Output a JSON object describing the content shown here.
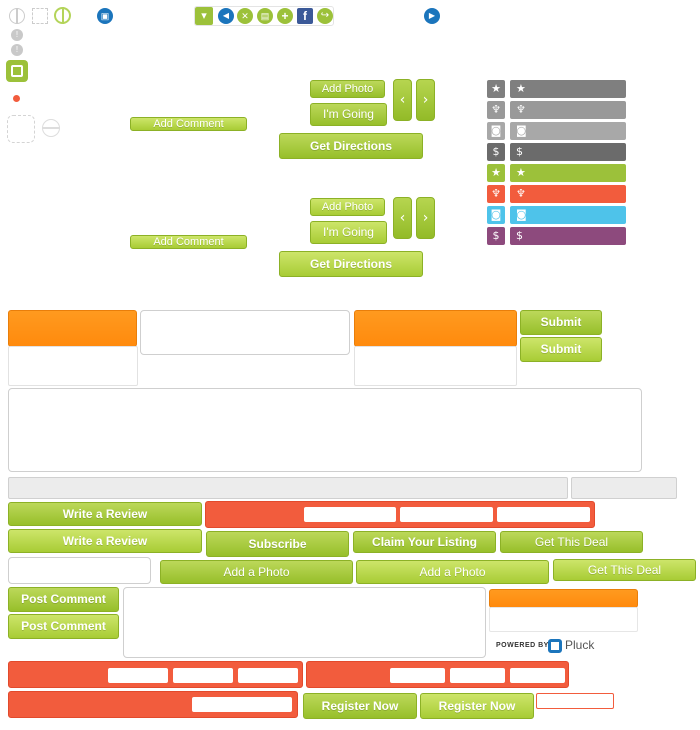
{
  "top_buttons": {
    "add_comment_1": "Add Comment",
    "add_comment_2": "Add Comment",
    "add_photo_1": "Add Photo",
    "add_photo_2": "Add Photo",
    "im_going_1": "I'm Going",
    "im_going_2": "I'm Going",
    "get_directions_1": "Get Directions",
    "get_directions_2": "Get Directions",
    "prev_arrow": "‹",
    "next_arrow": "›"
  },
  "toolbar": {
    "dropdown_glyph": "▾",
    "back_glyph": "◀",
    "close_glyph": "✕",
    "print_glyph": "▤",
    "add_glyph": "+",
    "facebook_glyph": "f",
    "share_glyph": "↪",
    "left_icon_glyph": "▣",
    "right_icon_glyph": "▶"
  },
  "side_icons": {
    "info_1": "!",
    "info_2": "!"
  },
  "category_rows": [
    {
      "icon": "★",
      "color": "#7f7f7f",
      "label": "★"
    },
    {
      "icon": "♆",
      "color": "#999999",
      "label": "♆"
    },
    {
      "icon": "◙",
      "color": "#a8a8a8",
      "label": "◙"
    },
    {
      "icon": "$",
      "color": "#6b6b6b",
      "label": "$"
    },
    {
      "icon": "★",
      "color": "#9cc13a",
      "label": "★"
    },
    {
      "icon": "♆",
      "color": "#f25c3d",
      "label": "♆"
    },
    {
      "icon": "◙",
      "color": "#4ec3ea",
      "label": "◙"
    },
    {
      "icon": "$",
      "color": "#8d4a7d",
      "label": "$"
    }
  ],
  "form": {
    "submit_1": "Submit",
    "submit_2": "Submit",
    "write_review_1": "Write a Review",
    "write_review_2": "Write a Review",
    "subscribe": "Subscribe",
    "claim_listing": "Claim Your Listing",
    "get_this_deal_1": "Get This Deal",
    "get_this_deal_2": "Get This Deal",
    "add_a_photo_1": "Add a Photo",
    "add_a_photo_2": "Add a Photo",
    "post_comment_1": "Post Comment",
    "post_comment_2": "Post Comment",
    "register_now_1": "Register Now",
    "register_now_2": "Register Now"
  },
  "pluck": {
    "powered_by": "POWERED BY",
    "brand": "Pluck"
  },
  "colors": {
    "green": "#9cc13a",
    "orange": "#ff8c12",
    "red": "#f25c3d",
    "blue": "#1b75bc"
  }
}
